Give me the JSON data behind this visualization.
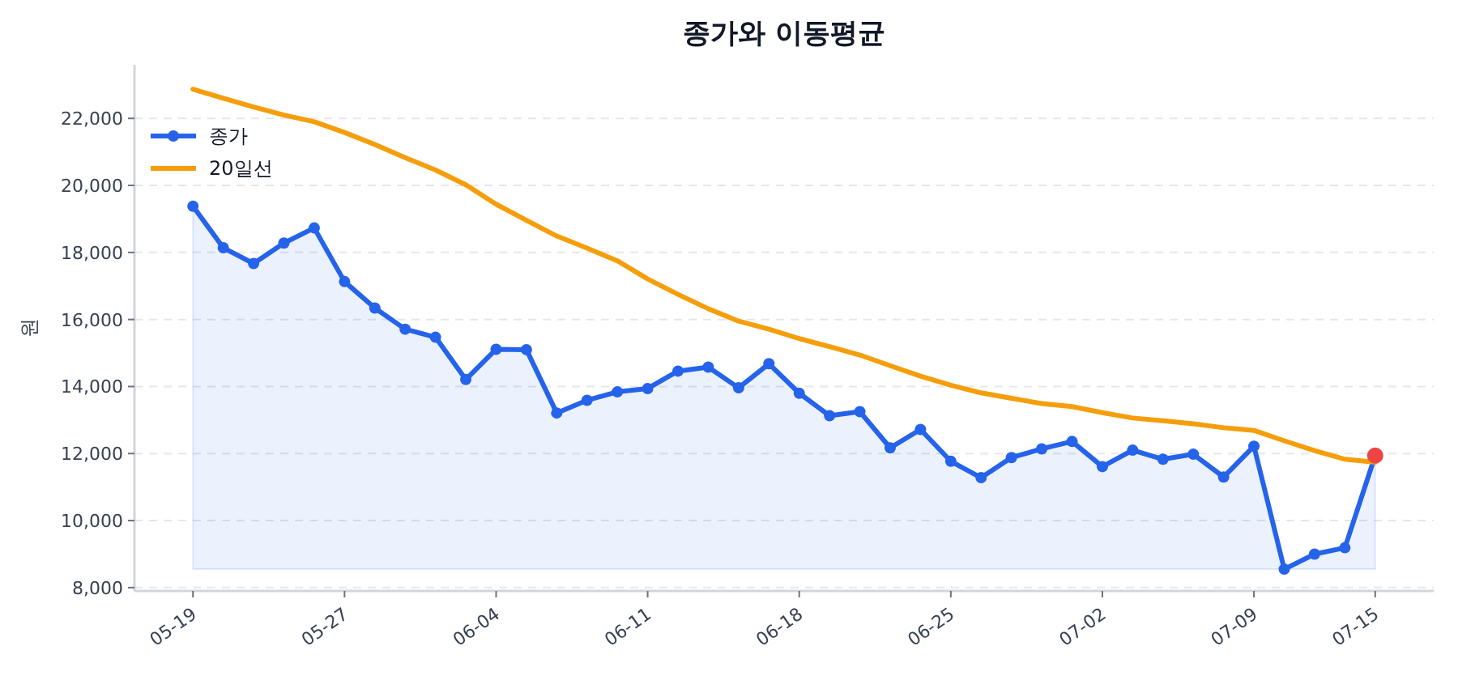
{
  "chart_data": {
    "type": "line",
    "title": "종가와 이동평균",
    "ylabel": "원",
    "categories": [
      "05-19",
      null,
      null,
      null,
      null,
      "05-27",
      null,
      null,
      null,
      null,
      "06-04",
      null,
      null,
      null,
      null,
      "06-11",
      null,
      null,
      null,
      null,
      "06-18",
      null,
      null,
      null,
      null,
      "06-25",
      null,
      null,
      null,
      null,
      "07-02",
      null,
      null,
      null,
      null,
      "07-09",
      null,
      null,
      null,
      "07-15"
    ],
    "series": [
      {
        "name": "종가",
        "type": "area",
        "color": "#2563eb",
        "marker": "circle",
        "values": [
          19380,
          18140,
          17670,
          18280,
          18730,
          17130,
          16340,
          15710,
          15470,
          14210,
          15110,
          15100,
          13210,
          13590,
          13840,
          13940,
          14460,
          14580,
          13960,
          14680,
          13800,
          13130,
          13250,
          12170,
          12720,
          11770,
          11280,
          11880,
          12140,
          12360,
          11610,
          12100,
          11830,
          11980,
          11300,
          12220,
          8550,
          9000,
          9190,
          11940
        ]
      },
      {
        "name": "20일선",
        "color": "#f59e0b",
        "marker": "none",
        "values": [
          22870,
          22600,
          22340,
          22100,
          21900,
          21580,
          21220,
          20830,
          20460,
          20020,
          19440,
          18960,
          18490,
          18130,
          17750,
          17210,
          16750,
          16320,
          15950,
          15710,
          15430,
          15190,
          14940,
          14620,
          14310,
          14040,
          13810,
          13650,
          13490,
          13400,
          13220,
          13060,
          12980,
          12890,
          12770,
          12690,
          12380,
          12090,
          11830,
          11740
        ]
      },
      {
        "type": "scatter",
        "color": "#ef4444",
        "marker": "circle",
        "values": [
          null,
          null,
          null,
          null,
          null,
          null,
          null,
          null,
          null,
          null,
          null,
          null,
          null,
          null,
          null,
          null,
          null,
          null,
          null,
          null,
          null,
          null,
          null,
          null,
          null,
          null,
          null,
          null,
          null,
          null,
          null,
          null,
          null,
          null,
          null,
          null,
          null,
          null,
          null,
          11940
        ]
      }
    ],
    "ylim": [
      7900,
      23600
    ],
    "yticks": [
      {
        "value": 8000,
        "label": "8,000"
      },
      {
        "value": 10000,
        "label": "10,000"
      },
      {
        "value": 12000,
        "label": "12,000"
      },
      {
        "value": 14000,
        "label": "14,000"
      },
      {
        "value": 16000,
        "label": "16,000"
      },
      {
        "value": 18000,
        "label": "18,000"
      },
      {
        "value": 20000,
        "label": "20,000"
      },
      {
        "value": 22000,
        "label": "22,000"
      }
    ],
    "grid": "y",
    "line_style": "solid",
    "legend": "top left"
  }
}
